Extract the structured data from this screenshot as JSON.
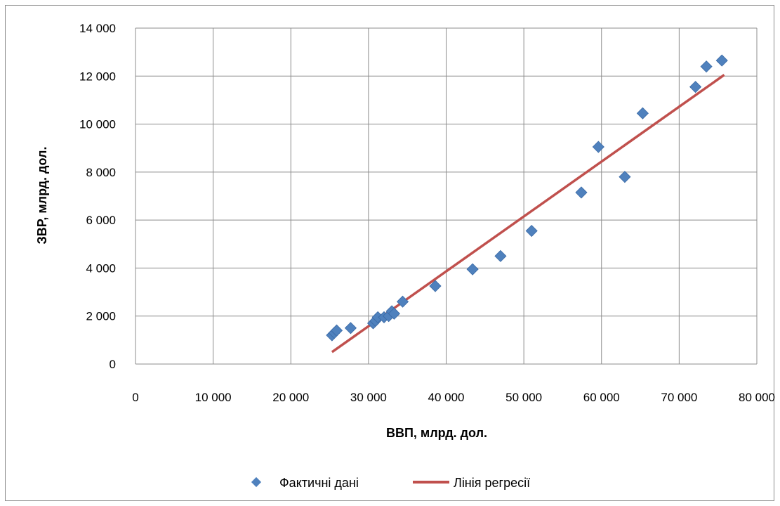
{
  "chart_data": {
    "type": "scatter",
    "title": "",
    "xlabel": "ВВП, млрд. дол.",
    "ylabel": "ЗВР, млрд. дол.",
    "xlim": [
      0,
      80000
    ],
    "ylim": [
      0,
      14000
    ],
    "x_ticks": [
      0,
      10000,
      20000,
      30000,
      40000,
      50000,
      60000,
      70000,
      80000
    ],
    "y_ticks": [
      0,
      2000,
      4000,
      6000,
      8000,
      10000,
      12000,
      14000
    ],
    "x_tick_labels": [
      "0",
      "10 000",
      "20 000",
      "30 000",
      "40 000",
      "50 000",
      "60 000",
      "70 000",
      "80 000"
    ],
    "y_tick_labels": [
      "0",
      "2 000",
      "4 000",
      "6 000",
      "8 000",
      "10 000",
      "12 000",
      "14 000"
    ],
    "grid": true,
    "legend_position": "bottom",
    "series": [
      {
        "name": "Фактичні дані",
        "kind": "scatter",
        "color": "#4f81bd",
        "points": [
          [
            25300,
            1200
          ],
          [
            25600,
            1300
          ],
          [
            25900,
            1400
          ],
          [
            27700,
            1500
          ],
          [
            30600,
            1700
          ],
          [
            30900,
            1800
          ],
          [
            31200,
            1950
          ],
          [
            32000,
            1950
          ],
          [
            32600,
            2000
          ],
          [
            33000,
            2200
          ],
          [
            33300,
            2100
          ],
          [
            34400,
            2600
          ],
          [
            38600,
            3250
          ],
          [
            43400,
            3950
          ],
          [
            47000,
            4500
          ],
          [
            51000,
            5550
          ],
          [
            57400,
            7150
          ],
          [
            59600,
            9050
          ],
          [
            63000,
            7800
          ],
          [
            65300,
            10450
          ],
          [
            72100,
            11550
          ],
          [
            73500,
            12400
          ],
          [
            75500,
            12650
          ]
        ]
      },
      {
        "name": "Лінія регресії",
        "kind": "line",
        "color": "#c0504d",
        "points": [
          [
            25300,
            500
          ],
          [
            75800,
            12050
          ]
        ]
      }
    ]
  }
}
